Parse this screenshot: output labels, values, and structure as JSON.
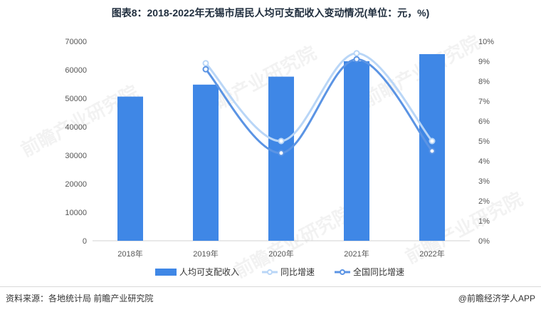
{
  "title": "图表8：2018-2022年无锡市居民人均可支配收入变动情况(单位：元，%)",
  "source": "资料来源：各地统计局 前瞻产业研究院",
  "credit": "@前瞻经济学人APP",
  "watermark": "前瞻产业研究院",
  "chart_data": {
    "type": "bar",
    "title": "图表8：2018-2022年无锡市居民人均可支配收入变动情况(单位：元，%)",
    "categories": [
      "2018年",
      "2019年",
      "2020年",
      "2021年",
      "2022年"
    ],
    "y_left": {
      "ylim": [
        0,
        70000
      ],
      "ticks": [
        "0",
        "10000",
        "20000",
        "30000",
        "40000",
        "50000",
        "60000",
        "70000"
      ]
    },
    "y_right": {
      "ylim": [
        0,
        10
      ],
      "unit": "%",
      "ticks": [
        "0%",
        "1%",
        "2%",
        "3%",
        "4%",
        "5%",
        "6%",
        "7%",
        "8%",
        "9%",
        "10%"
      ]
    },
    "series": [
      {
        "name": "人均可支配收入",
        "type": "bar",
        "axis": "left",
        "color": "#3f87e6",
        "values": [
          50600,
          54800,
          57600,
          63000,
          65500
        ]
      },
      {
        "name": "同比增速",
        "type": "line",
        "axis": "right",
        "color": "#b9d6f7",
        "values": [
          null,
          8.9,
          5.0,
          9.4,
          5.0
        ]
      },
      {
        "name": "全国同比增速",
        "type": "line",
        "axis": "right",
        "color": "#5b94e4",
        "values": [
          null,
          8.6,
          4.4,
          9.1,
          4.5
        ]
      }
    ],
    "legend": "bottom",
    "grid": false
  }
}
